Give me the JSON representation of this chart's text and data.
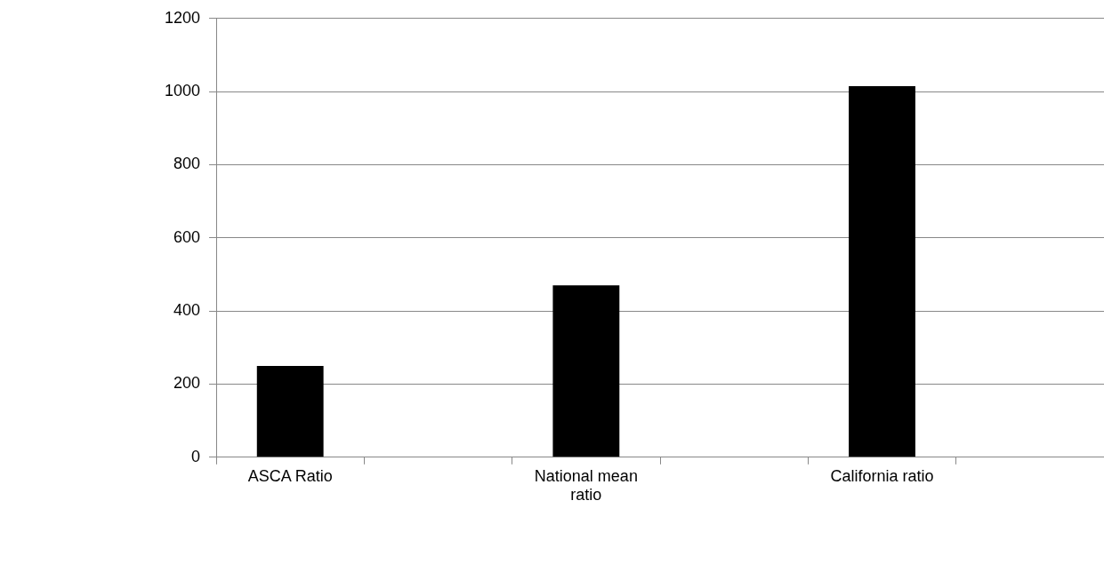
{
  "chart_data": {
    "type": "bar",
    "categories": [
      "ASCA Ratio",
      null,
      "National mean ratio",
      null,
      "California ratio",
      null
    ],
    "values": [
      250,
      null,
      470,
      null,
      1015,
      null
    ],
    "color": "#000000",
    "ylim": [
      0,
      1200
    ],
    "yticks": [
      0,
      200,
      400,
      600,
      800,
      1000,
      1200
    ],
    "grid": "y",
    "legend": false
  }
}
